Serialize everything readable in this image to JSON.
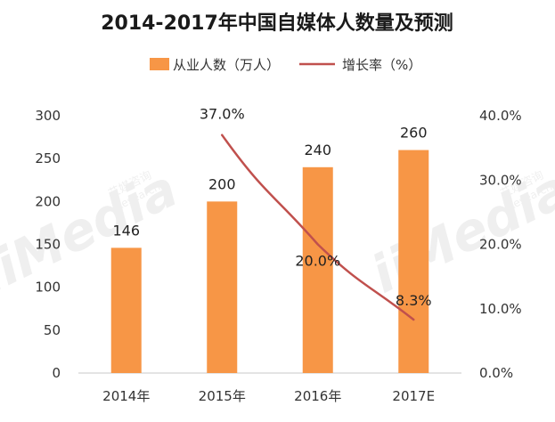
{
  "chart_data": {
    "type": "bar+line",
    "title": "2014-2017年中国自媒体人数量及预测",
    "categories": [
      "2014年",
      "2015年",
      "2016年",
      "2017E"
    ],
    "series": [
      {
        "name": "从业人数（万人）",
        "kind": "bar",
        "axis": "left",
        "values": [
          146,
          200,
          240,
          260
        ],
        "labels": [
          "146",
          "200",
          "240",
          "260"
        ],
        "color": "#F79646"
      },
      {
        "name": "增长率（%）",
        "kind": "line",
        "axis": "right",
        "values": [
          null,
          37.0,
          20.0,
          8.3
        ],
        "labels": [
          "",
          "37.0%",
          "20.0%",
          "8.3%"
        ],
        "color": "#C0504D"
      }
    ],
    "y_left": {
      "min": 0,
      "max": 300,
      "ticks": [
        0,
        50,
        100,
        150,
        200,
        250,
        300
      ],
      "tick_labels": [
        "0",
        "50",
        "100",
        "150",
        "200",
        "250",
        "300"
      ]
    },
    "y_right": {
      "min": 0,
      "max": 40,
      "ticks": [
        0,
        10,
        20,
        30,
        40
      ],
      "tick_labels": [
        "0.0%",
        "10.0%",
        "20.0%",
        "30.0%",
        "40.0%"
      ]
    },
    "legend": {
      "placement": "top-center",
      "items": [
        "从业人数（万人）",
        "增长率（%）"
      ]
    },
    "grid": false
  },
  "watermark": {
    "brand": "iiMedia",
    "sub_lines": [
      "艾媒咨询",
      "Research"
    ]
  }
}
